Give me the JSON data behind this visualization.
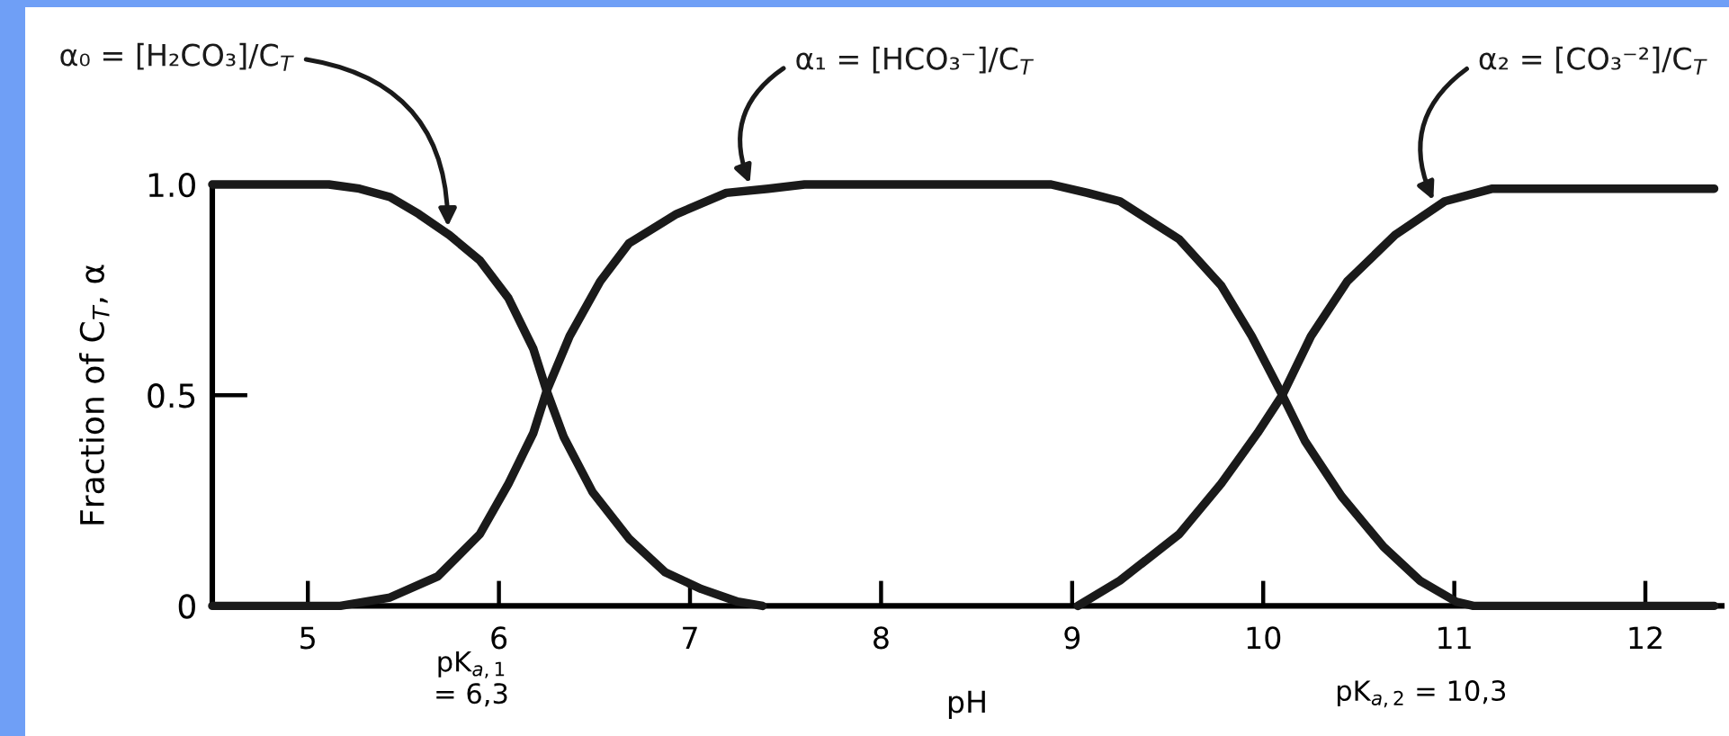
{
  "chart_data": {
    "type": "line",
    "xlabel": "pH",
    "ylabel": "Fraction of C$_{T}$, α",
    "xlim": [
      4.5,
      12.4
    ],
    "xticks": [
      5,
      6,
      7,
      8,
      9,
      10,
      11,
      12
    ],
    "ylim": [
      0,
      1
    ],
    "yticks": [
      0,
      0.5,
      {
        "value": 1,
        "label": "1.0"
      }
    ],
    "line_style": "solid",
    "annotations": [
      "pK$_{a,1}$\n= 6,3",
      "pK$_{a,2}$ = 10,3"
    ],
    "series": [
      {
        "name": "α₀ = [H₂CO₃]/C$_{T}$",
        "color": "#1a1a1a",
        "x": [
          4.5,
          5.11,
          5.27,
          5.43,
          5.58,
          5.74,
          5.9,
          6.05,
          6.18,
          6.25,
          6.34,
          6.49,
          6.68,
          6.87,
          7.06,
          7.25,
          7.38
        ],
        "values": [
          1,
          1,
          0.99,
          0.97,
          0.93,
          0.88,
          0.82,
          0.73,
          0.61,
          0.51,
          0.4,
          0.27,
          0.16,
          0.08,
          0.04,
          0.01,
          0
        ]
      },
      {
        "name": "α₁ = [HCO₃⁻]/C$_{T}$",
        "color": "#1a1a1a",
        "x": [
          4.5,
          5.17,
          5.43,
          5.68,
          5.9,
          6.05,
          6.18,
          6.25,
          6.37,
          6.53,
          6.68,
          6.93,
          7.19,
          7.41,
          7.6,
          8.89,
          9.08,
          9.25,
          9.56,
          9.78,
          9.94,
          10.1,
          10.22,
          10.41,
          10.63,
          10.82,
          11.01,
          11.1,
          12.36
        ],
        "values": [
          0,
          0,
          0.02,
          0.07,
          0.17,
          0.29,
          0.41,
          0.51,
          0.64,
          0.77,
          0.86,
          0.93,
          0.98,
          0.99,
          1,
          1,
          0.98,
          0.96,
          0.87,
          0.76,
          0.64,
          0.5,
          0.39,
          0.26,
          0.14,
          0.06,
          0.01,
          0,
          0
        ]
      },
      {
        "name": "α₂ = [CO₃⁻²]/C$_{T}$",
        "color": "#1a1a1a",
        "x": [
          9.03,
          9.25,
          9.56,
          9.78,
          9.97,
          10.1,
          10.25,
          10.44,
          10.69,
          10.95,
          11.2,
          11.45,
          12.36
        ],
        "values": [
          0,
          0.06,
          0.17,
          0.29,
          0.41,
          0.5,
          0.64,
          0.77,
          0.88,
          0.96,
          0.99,
          0.99,
          0.99
        ]
      }
    ]
  }
}
